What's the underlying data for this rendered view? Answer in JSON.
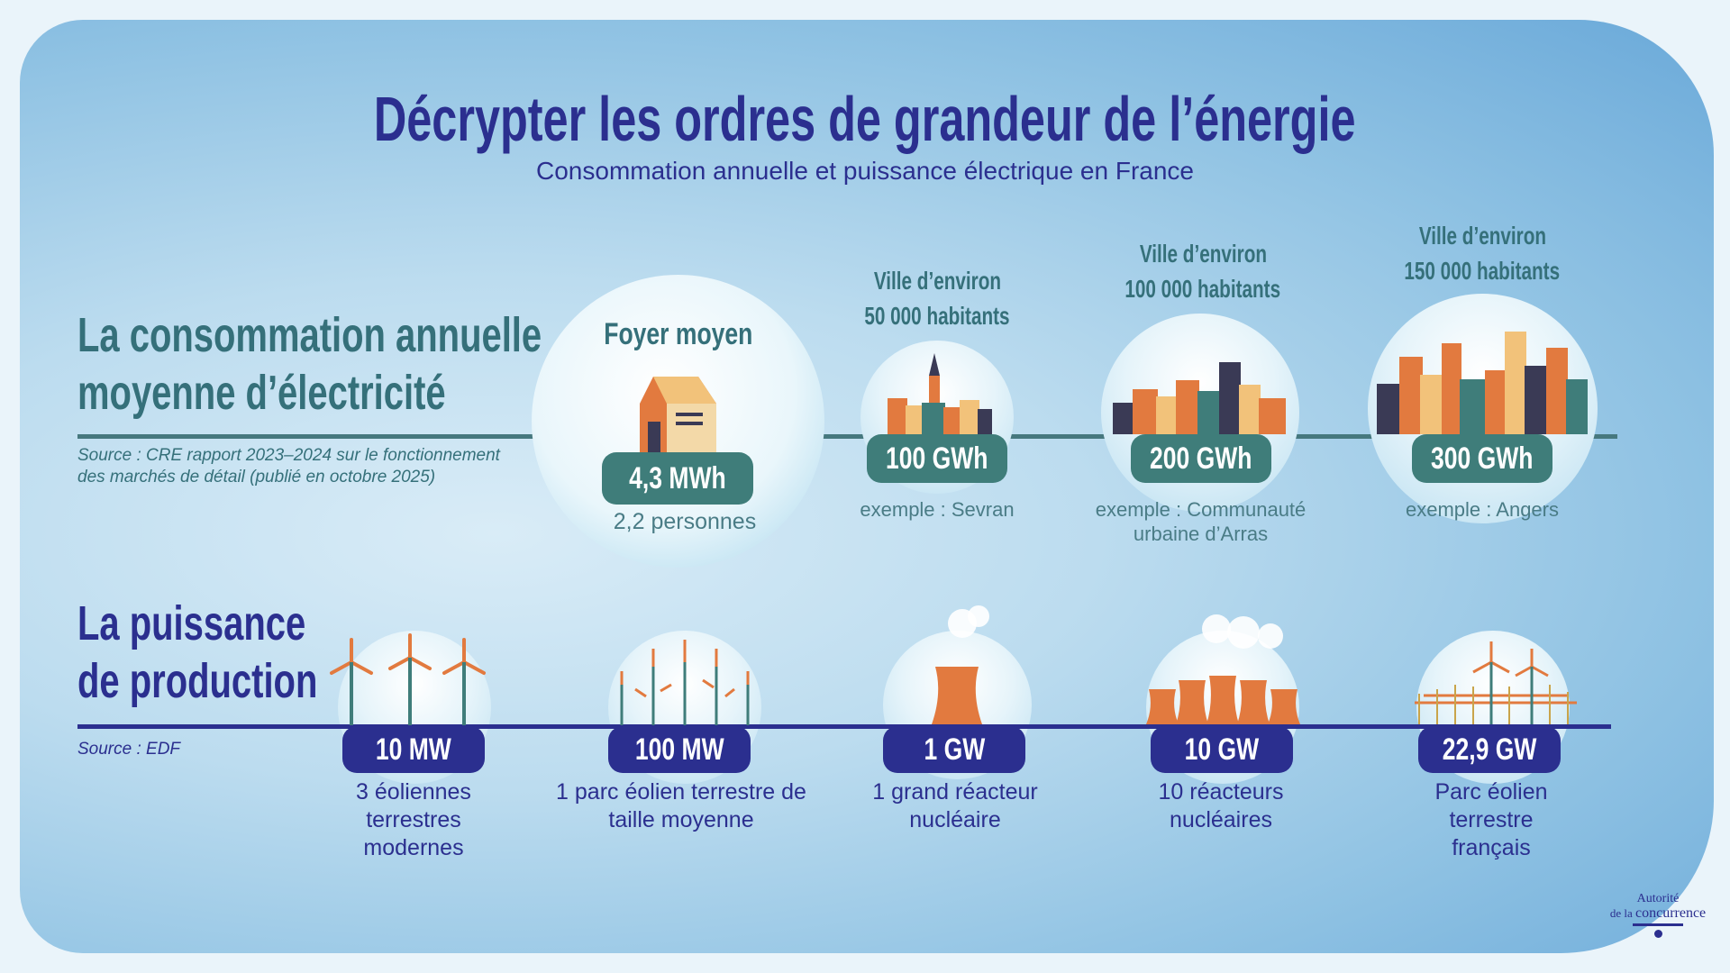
{
  "title": "Décrypter les ordres de grandeur de l’énergie",
  "subtitle": "Consommation annuelle et puissance électrique en France",
  "consumption": {
    "heading_line1": "La consommation annuelle",
    "heading_line2": "moyenne d’électricité",
    "source": "Source : CRE rapport 2023–2024 sur le fonctionnement des marchés de détail (publié en octobre 2025)",
    "household": {
      "label": "Foyer moyen",
      "value": "4,3 MWh",
      "caption": "2,2 personnes"
    },
    "cities": [
      {
        "label_line1": "Ville d’environ",
        "label_line2": "50 000 habitants",
        "value": "100 GWh",
        "example": "exemple : Sevran"
      },
      {
        "label_line1": "Ville d’environ",
        "label_line2": "100 000 habitants",
        "value": "200 GWh",
        "example": "exemple : Communauté urbaine d’Arras"
      },
      {
        "label_line1": "Ville d’environ",
        "label_line2": "150 000 habitants",
        "value": "300 GWh",
        "example": "exemple : Angers"
      }
    ]
  },
  "production": {
    "heading_line1": "La puissance",
    "heading_line2": "de production",
    "source": "Source : EDF",
    "items": [
      {
        "value": "10 MW",
        "caption": "3 éoliennes terrestres modernes"
      },
      {
        "value": "100 MW",
        "caption": "1 parc éolien terrestre de taille moyenne"
      },
      {
        "value": "1 GW",
        "caption": "1 grand réacteur nucléaire"
      },
      {
        "value": "10 GW",
        "caption": "10 réacteurs nucléaires"
      },
      {
        "value": "22,9 GW",
        "caption": "Parc éolien terrestre français"
      }
    ]
  },
  "logo": {
    "line1": "Autorité",
    "line2a": "de la",
    "line2b": "concurrence"
  },
  "colors": {
    "navy": "#2b2f8f",
    "teal": "#35707a",
    "orange": "#e27a3f"
  }
}
